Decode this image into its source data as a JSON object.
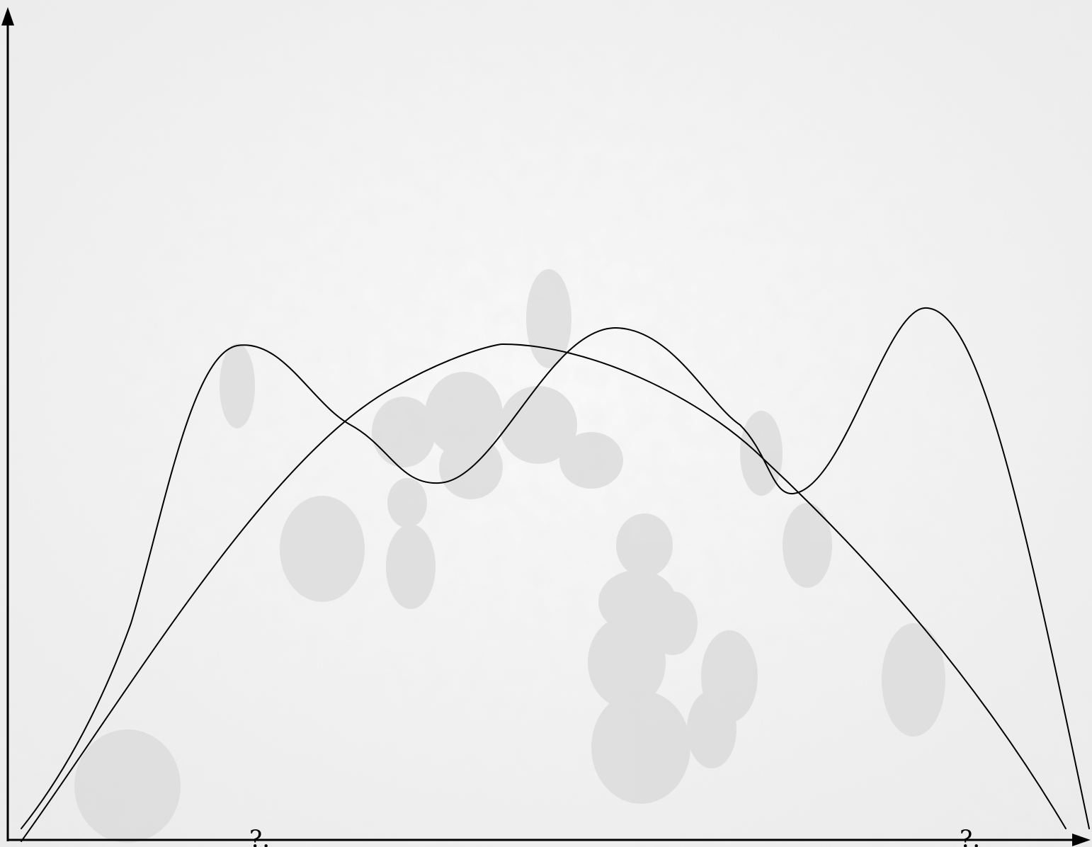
{
  "diagram": {
    "background": {
      "scene": "elephant-herd-photo",
      "tone": "#eeeeee"
    },
    "axes": {
      "color": "#000000"
    },
    "x_axis_marks": [
      "?.",
      "?."
    ],
    "curves": [
      {
        "shape": "single-peak",
        "color": "#000000"
      },
      {
        "shape": "triple-peak",
        "color": "#000000"
      }
    ]
  }
}
